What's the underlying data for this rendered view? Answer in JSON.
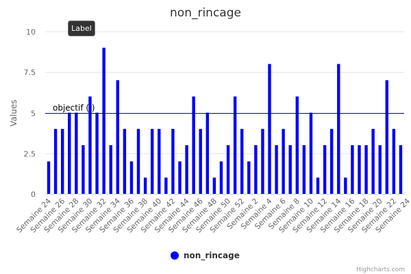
{
  "chart_data": {
    "type": "bar",
    "title": "non_rincage",
    "ylabel": "Values",
    "ylim": [
      0,
      10
    ],
    "yticks": [
      "0",
      "2.5",
      "5",
      "7.5",
      "10"
    ],
    "ytick_values": [
      0,
      2.5,
      5,
      7.5,
      10
    ],
    "x_tick_labels": [
      "Semaine 24",
      "Semaine 26",
      "Semaine 28",
      "Semaine 30",
      "Semaine 32",
      "Semaine 34",
      "Semaine 36",
      "Semaine 38",
      "Semaine 40",
      "Semaine 42",
      "Semaine 44",
      "Semaine 46",
      "Semaine 48",
      "Semaine 50",
      "Semaine 52",
      "Semaine 2",
      "Semaine 4",
      "Semaine 6",
      "Semaine 8",
      "Semaine 10",
      "Semaine 12",
      "Semaine 14",
      "Semaine 16",
      "Semaine 18",
      "Semaine 20",
      "Semaine 22",
      "Semaine 24"
    ],
    "values": [
      2,
      4,
      4,
      5,
      5,
      3,
      6,
      5,
      9,
      3,
      7,
      4,
      2,
      4,
      1,
      4,
      4,
      1,
      4,
      2,
      3,
      6,
      4,
      5,
      1,
      2,
      3,
      6,
      4,
      2,
      3,
      4,
      8,
      3,
      4,
      3,
      6,
      3,
      5,
      1,
      3,
      4,
      8,
      1,
      3,
      3,
      3,
      4,
      3,
      7,
      4,
      3
    ],
    "series": [
      {
        "name": "non_rincage",
        "color": "#0000ff"
      }
    ],
    "plot_line": {
      "value": 5,
      "label": "objectif ( )",
      "color": "#0000aa"
    },
    "tooltip_label": "Label",
    "legend_position": "bottom-center",
    "credit": "Highcharts.com",
    "grid": true
  }
}
